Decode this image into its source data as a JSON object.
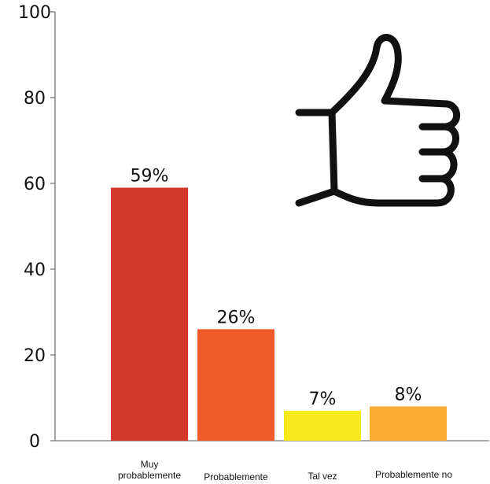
{
  "chart_data": {
    "type": "bar",
    "title": "",
    "xlabel": "",
    "ylabel": "",
    "ylim": [
      0,
      100
    ],
    "yticks": [
      0,
      20,
      40,
      60,
      80,
      100
    ],
    "categories": [
      [
        "Muy",
        "probablemente"
      ],
      [
        "Probablemente"
      ],
      [
        "Tal vez"
      ],
      [
        "Probablemente no"
      ]
    ],
    "values": [
      59,
      26,
      7,
      8
    ],
    "data_labels": [
      "59%",
      "26%",
      "7%",
      "8%"
    ],
    "colors": [
      "#d2392b",
      "#f15a2b",
      "#f7ea1c",
      "#fbae33"
    ],
    "grid": false,
    "legend": "none",
    "decoration_icon": "thumbs-up-icon"
  }
}
